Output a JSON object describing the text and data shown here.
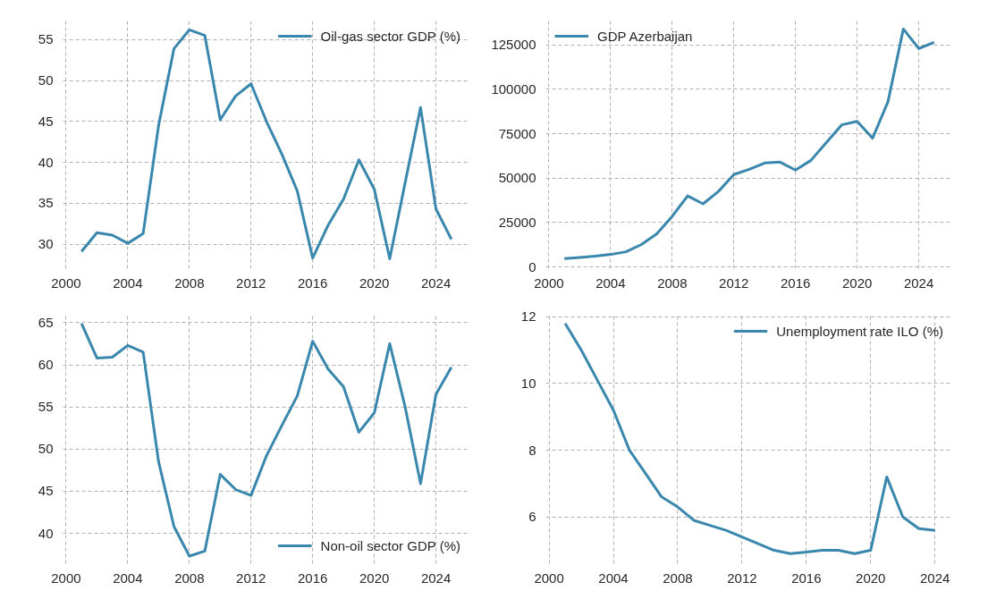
{
  "chart_data": [
    {
      "type": "line",
      "x": [
        2001,
        2002,
        2003,
        2004,
        2005,
        2006,
        2007,
        2008,
        2009,
        2010,
        2011,
        2012,
        2013,
        2014,
        2015,
        2016,
        2017,
        2018,
        2019,
        2020,
        2021,
        2022,
        2023,
        2024,
        2025
      ],
      "series": [
        {
          "name": "Oil-gas sector GDP (%)",
          "color": "#3a87ae",
          "values": [
            29.1,
            31.4,
            31.1,
            30.1,
            31.3,
            44.5,
            53.9,
            56.2,
            55.5,
            45.2,
            48.1,
            49.6,
            45.0,
            41.0,
            36.5,
            28.3,
            32.3,
            35.5,
            40.3,
            36.7,
            28.2,
            37.5,
            46.7,
            34.3,
            30.6
          ]
        }
      ],
      "xlim": [
        1999.8,
        2026.2
      ],
      "ylim": [
        27,
        57.6
      ],
      "xticks": [
        2000,
        2004,
        2008,
        2012,
        2016,
        2020,
        2024
      ],
      "yticks": [
        30,
        35,
        40,
        45,
        50,
        55
      ],
      "grid": true,
      "legend": "top right",
      "line_style": "solid"
    },
    {
      "type": "line",
      "x": [
        2001,
        2002,
        2003,
        2004,
        2005,
        2006,
        2007,
        2008,
        2009,
        2010,
        2011,
        2012,
        2013,
        2014,
        2015,
        2016,
        2017,
        2018,
        2019,
        2020,
        2021,
        2022,
        2023,
        2024,
        2025
      ],
      "series": [
        {
          "name": "GDP Azerbaijan",
          "color": "#3a87ae",
          "values": [
            4700,
            5300,
            6000,
            7000,
            8500,
            12600,
            18600,
            28500,
            40000,
            35500,
            42500,
            52000,
            55000,
            58500,
            59000,
            54500,
            60000,
            70000,
            80000,
            82000,
            72500,
            93000,
            134000,
            123000,
            126500
          ]
        }
      ],
      "xlim": [
        1999.8,
        2026.2
      ],
      "ylim": [
        -1000,
        140000
      ],
      "xticks": [
        2000,
        2004,
        2008,
        2012,
        2016,
        2020,
        2024
      ],
      "yticks": [
        0,
        25000,
        50000,
        75000,
        100000,
        125000
      ],
      "grid": true,
      "legend": "top left",
      "line_style": "solid"
    },
    {
      "type": "line",
      "x": [
        2001,
        2002,
        2003,
        2004,
        2005,
        2006,
        2007,
        2008,
        2009,
        2010,
        2011,
        2012,
        2013,
        2014,
        2015,
        2016,
        2017,
        2018,
        2019,
        2020,
        2021,
        2022,
        2023,
        2024,
        2025
      ],
      "series": [
        {
          "name": "Non-oil sector GDP (%)",
          "color": "#3a87ae",
          "values": [
            64.9,
            60.8,
            60.9,
            62.3,
            61.5,
            48.5,
            40.8,
            37.3,
            37.9,
            47.0,
            45.2,
            44.5,
            49.2,
            52.8,
            56.3,
            62.8,
            59.5,
            57.4,
            52.0,
            54.3,
            62.5,
            55.0,
            45.9,
            56.5,
            59.7
          ]
        }
      ],
      "xlim": [
        1999.8,
        2026.2
      ],
      "ylim": [
        36.4,
        66.1
      ],
      "xticks": [
        2000,
        2004,
        2008,
        2012,
        2016,
        2020,
        2024
      ],
      "yticks": [
        40,
        45,
        50,
        55,
        60,
        65
      ],
      "grid": true,
      "legend": "bottom right",
      "line_style": "solid"
    },
    {
      "type": "line",
      "x": [
        2001,
        2002,
        2003,
        2004,
        2005,
        2006,
        2007,
        2008,
        2009,
        2010,
        2011,
        2012,
        2013,
        2014,
        2015,
        2016,
        2017,
        2018,
        2019,
        2020,
        2021,
        2022,
        2023,
        2024
      ],
      "series": [
        {
          "name": "Unemployment rate ILO (%)",
          "color": "#3a87ae",
          "values": [
            11.8,
            11.0,
            10.1,
            9.2,
            8.0,
            7.3,
            6.6,
            6.3,
            5.9,
            5.75,
            5.6,
            5.4,
            5.2,
            5.0,
            4.9,
            4.95,
            5.0,
            5.0,
            4.9,
            5.0,
            7.2,
            6.0,
            5.65,
            5.6
          ]
        }
      ],
      "xlim": [
        1999.8,
        2025.1
      ],
      "ylim": [
        4.6,
        12.1
      ],
      "xticks": [
        2000,
        2004,
        2008,
        2012,
        2016,
        2020,
        2024
      ],
      "yticks": [
        6,
        8,
        10,
        12
      ],
      "grid": true,
      "legend": "top right",
      "line_style": "solid"
    }
  ]
}
